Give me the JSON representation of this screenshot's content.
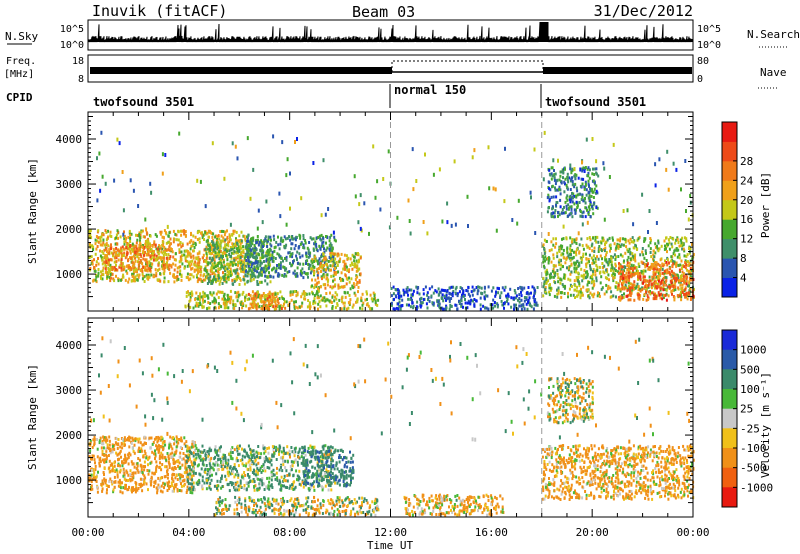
{
  "header": {
    "station": "Inuvik (fitACF)",
    "beam": "Beam 03",
    "date": "31/Dec/2012"
  },
  "nsky_panel": {
    "label": "N.Sky",
    "tick_top": "10^5",
    "tick_bottom": "10^0",
    "right_label": "N.Search"
  },
  "freq_panel": {
    "label_line1": "Freq.",
    "label_line2": "[MHz]",
    "tick_top": "18",
    "tick_bottom": "8",
    "right_tick_top": "80",
    "right_tick_bottom": "0",
    "right_label": "Nave"
  },
  "cpid_panel": {
    "label": "CPID",
    "segments": [
      {
        "name": "twofsound 3501",
        "start_hour": 0,
        "end_hour": 12
      },
      {
        "name": "normal 150",
        "start_hour": 12,
        "end_hour": 18
      },
      {
        "name": "twofsound 3501",
        "start_hour": 18,
        "end_hour": 24
      }
    ]
  },
  "power_colorbar": {
    "label": "Power [dB]",
    "ticks": [
      "4",
      "8",
      "12",
      "16",
      "20",
      "24",
      "28"
    ],
    "colors": [
      "#0a22e6",
      "#2a55b0",
      "#3f8f6a",
      "#46a82e",
      "#c4c818",
      "#f0a01a",
      "#f07a1a",
      "#ee4a18",
      "#e81a12"
    ]
  },
  "velocity_colorbar": {
    "label": "Velocity [m s⁻¹]",
    "ticks": [
      "1000",
      "500",
      "100",
      "25",
      "-25",
      "-100",
      "-500",
      "-1000"
    ],
    "colors": [
      "#1a2ad8",
      "#2a5aa8",
      "#3a8a6a",
      "#48b838",
      "#c8c8c8",
      "#f0c01a",
      "#f09018",
      "#f06010",
      "#e81a10"
    ]
  },
  "chart_data": {
    "type": "heatmap",
    "xlabel": "Time UT",
    "ylabel": "Slant Range [km]",
    "x_tick_labels": [
      "00:00",
      "04:00",
      "08:00",
      "12:00",
      "16:00",
      "20:00",
      "00:00"
    ],
    "y_tick_labels": [
      "1000",
      "2000",
      "3000",
      "4000"
    ],
    "xlim_hours": [
      0,
      24
    ],
    "ylim_km": [
      180,
      4600
    ],
    "mode_boundaries_hours": [
      12,
      18
    ],
    "panels": [
      {
        "quantity": "Power [dB]",
        "clusters": [
          {
            "t0": 0.0,
            "t1": 6.2,
            "r0": 850,
            "r1": 2000,
            "value": 20
          },
          {
            "t0": 0.6,
            "t1": 3.3,
            "r0": 1100,
            "r1": 1700,
            "value": 24
          },
          {
            "t0": 4.6,
            "t1": 7.2,
            "r0": 800,
            "r1": 1800,
            "value": 14
          },
          {
            "t0": 6.2,
            "t1": 9.8,
            "r0": 950,
            "r1": 1900,
            "value": 10
          },
          {
            "t0": 8.8,
            "t1": 10.8,
            "r0": 700,
            "r1": 1500,
            "value": 20
          },
          {
            "t0": 3.8,
            "t1": 11.5,
            "r0": 250,
            "r1": 650,
            "value": 18
          },
          {
            "t0": 6.3,
            "t1": 7.8,
            "r0": 250,
            "r1": 600,
            "value": 24
          },
          {
            "t0": 12.0,
            "t1": 17.8,
            "r0": 250,
            "r1": 750,
            "value": 6
          },
          {
            "t0": 18.0,
            "t1": 24.0,
            "r0": 500,
            "r1": 1850,
            "value": 16
          },
          {
            "t0": 21.0,
            "t1": 24.0,
            "r0": 450,
            "r1": 1300,
            "value": 27
          },
          {
            "t0": 18.2,
            "t1": 20.2,
            "r0": 2300,
            "r1": 3400,
            "value": 9
          }
        ]
      },
      {
        "quantity": "Velocity [m s⁻¹]",
        "clusters": [
          {
            "t0": 0.0,
            "t1": 4.2,
            "r0": 750,
            "r1": 2000,
            "value": -200
          },
          {
            "t0": 3.8,
            "t1": 9.8,
            "r0": 800,
            "r1": 1800,
            "value": 140
          },
          {
            "t0": 8.5,
            "t1": 10.5,
            "r0": 900,
            "r1": 1700,
            "value": 400
          },
          {
            "t0": 5.0,
            "t1": 11.5,
            "r0": 250,
            "r1": 650,
            "value": 0
          },
          {
            "t0": 12.5,
            "t1": 16.5,
            "r0": 250,
            "r1": 700,
            "value": -150
          },
          {
            "t0": 18.0,
            "t1": 24.0,
            "r0": 600,
            "r1": 1800,
            "value": -180
          },
          {
            "t0": 18.2,
            "t1": 20.0,
            "r0": 2300,
            "r1": 3300,
            "value": -60
          }
        ]
      }
    ]
  }
}
